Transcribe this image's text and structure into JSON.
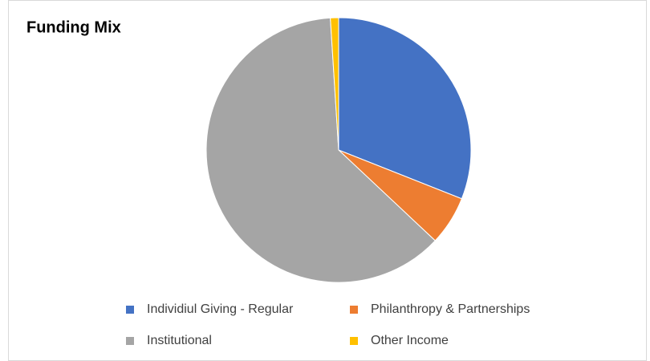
{
  "chart_data": {
    "type": "pie",
    "title": "Funding Mix",
    "categories": [
      "Individiul Giving - Regular",
      "Philanthropy & Partnerships",
      "Institutional",
      "Other Income"
    ],
    "values": [
      31,
      6,
      62,
      1
    ],
    "colors": [
      "#4472c4",
      "#ed7d31",
      "#a5a5a5",
      "#ffc000"
    ],
    "legend": "bottom"
  }
}
